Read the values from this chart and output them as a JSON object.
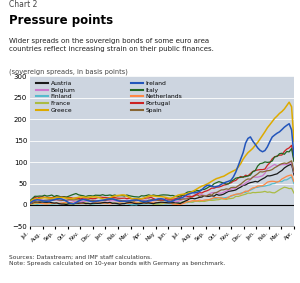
{
  "title_chart": "Chart 2",
  "title_main": "Pressure points",
  "subtitle": "Wider spreads on the sovereign bonds of some euro area\ncountries reflect increasing strain on their public finances.",
  "ylabel_text": "(sovereign spreads, in basis points)",
  "source_text": "Sources: Datastream; and IMF staff calculations.\nNote: Spreads calculated on 10-year bonds with Germany as benchmark.",
  "ylim": [
    -50,
    300
  ],
  "yticks": [
    -50,
    0,
    50,
    100,
    150,
    200,
    250,
    300
  ],
  "plot_bg": "#cdd5e0",
  "countries": [
    "Austria",
    "Belgium",
    "Finland",
    "France",
    "Greece",
    "Ireland",
    "Italy",
    "Netherlands",
    "Portugal",
    "Spain"
  ],
  "colors": {
    "Austria": "#1a1a1a",
    "Belgium": "#cc77cc",
    "Finland": "#55bbcc",
    "France": "#aabb44",
    "Greece": "#ddaa00",
    "Ireland": "#2255bb",
    "Italy": "#226622",
    "Netherlands": "#ff8844",
    "Portugal": "#cc2222",
    "Spain": "#886633"
  },
  "month_labels": [
    "Jul.",
    "Aug.",
    "Sep.",
    "Oct.",
    "Nov.",
    "Dec.",
    "Jan.",
    "Feb.",
    "Mar.",
    "Apr.",
    "May",
    "Jun.",
    "Jul.",
    "Aug.",
    "Sep.",
    "Oct.",
    "Nov.",
    "Dec.",
    "Jan.",
    "Feb.",
    "Mar.",
    "Apr."
  ],
  "n_points": 110
}
